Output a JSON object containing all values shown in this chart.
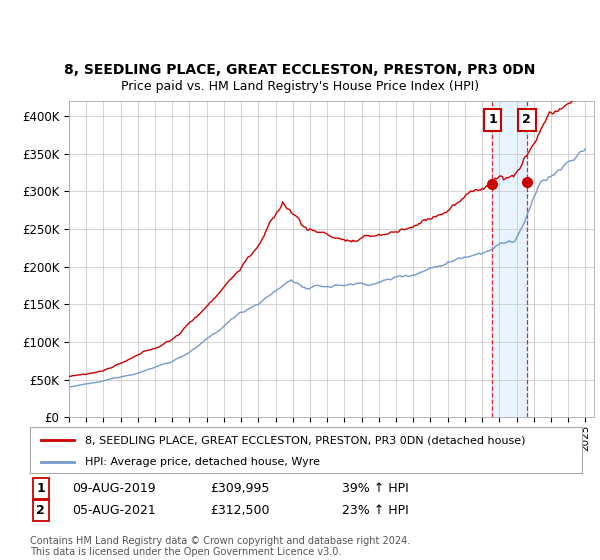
{
  "title1": "8, SEEDLING PLACE, GREAT ECCLESTON, PRESTON, PR3 0DN",
  "title2": "Price paid vs. HM Land Registry's House Price Index (HPI)",
  "ytick_labels": [
    "£0",
    "£50K",
    "£100K",
    "£150K",
    "£200K",
    "£250K",
    "£300K",
    "£350K",
    "£400K"
  ],
  "yticks": [
    0,
    50000,
    100000,
    150000,
    200000,
    250000,
    300000,
    350000,
    400000
  ],
  "ylim": [
    0,
    420000
  ],
  "xlim_start": 1995,
  "xlim_end": 2025.5,
  "legend_line1": "8, SEEDLING PLACE, GREAT ECCLESTON, PRESTON, PR3 0DN (detached house)",
  "legend_line2": "HPI: Average price, detached house, Wyre",
  "annotation1_label": "1",
  "annotation1_date": "09-AUG-2019",
  "annotation1_price": "£309,995",
  "annotation1_hpi": "39% ↑ HPI",
  "annotation1_year": 2019.6,
  "annotation1_value": 309995,
  "annotation2_label": "2",
  "annotation2_date": "05-AUG-2021",
  "annotation2_price": "£312,500",
  "annotation2_hpi": "23% ↑ HPI",
  "annotation2_year": 2021.6,
  "annotation2_value": 312500,
  "footer": "Contains HM Land Registry data © Crown copyright and database right 2024.\nThis data is licensed under the Open Government Licence v3.0.",
  "line1_color": "#cc0000",
  "line2_color": "#7799cc",
  "background_color": "#ffffff",
  "grid_color": "#cccccc",
  "annotation_box_color": "#cc0000",
  "shade_color": "#ddeeff"
}
